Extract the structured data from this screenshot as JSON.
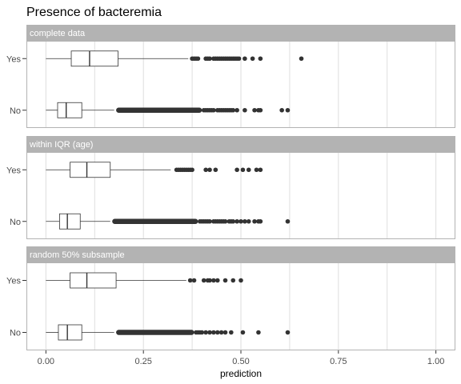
{
  "chart_data": {
    "type": "boxplot",
    "orientation": "horizontal",
    "title": "Presence of bacteremia",
    "xlabel": "prediction",
    "ylabel": "",
    "xlim": [
      -0.05,
      1.05
    ],
    "x_ticks": [
      0.0,
      0.25,
      0.5,
      0.75,
      1.0
    ],
    "x_tick_labels": [
      "0.00",
      "0.25",
      "0.50",
      "0.75",
      "1.00"
    ],
    "categories": [
      "Yes",
      "No"
    ],
    "grid": true,
    "box_color": "#333333",
    "outlier_color": "#333333",
    "strip_color": "#b3b3b3",
    "panel_border_color": "#b3b3b3",
    "grid_color": "#dedede",
    "facets": [
      {
        "label": "complete data",
        "boxes": [
          {
            "category": "Yes",
            "min": 0.0,
            "q1": 0.065,
            "median": 0.112,
            "q3": 0.185,
            "max": 0.365,
            "outliers": [
              0.375,
              0.38,
              0.385,
              0.39,
              0.41,
              0.415,
              0.42,
              0.43,
              0.435,
              0.44,
              0.445,
              0.45,
              0.455,
              0.46,
              0.465,
              0.47,
              0.475,
              0.48,
              0.485,
              0.49,
              0.495,
              0.51,
              0.53,
              0.55,
              0.655
            ]
          },
          {
            "category": "No",
            "min": 0.0,
            "q1": 0.03,
            "median": 0.052,
            "q3": 0.092,
            "max": 0.175,
            "outlier_band": [
              0.18,
              0.4
            ],
            "outliers": [
              0.405,
              0.41,
              0.415,
              0.42,
              0.425,
              0.43,
              0.44,
              0.445,
              0.45,
              0.455,
              0.46,
              0.465,
              0.47,
              0.475,
              0.48,
              0.49,
              0.51,
              0.535,
              0.545,
              0.55,
              0.605,
              0.62
            ]
          }
        ]
      },
      {
        "label": "within IQR (age)",
        "boxes": [
          {
            "category": "Yes",
            "min": 0.0,
            "q1": 0.062,
            "median": 0.105,
            "q3": 0.165,
            "max": 0.32,
            "outliers": [
              0.335,
              0.34,
              0.345,
              0.35,
              0.355,
              0.36,
              0.365,
              0.37,
              0.375,
              0.41,
              0.42,
              0.435,
              0.49,
              0.505,
              0.52,
              0.54,
              0.55
            ]
          },
          {
            "category": "No",
            "min": 0.0,
            "q1": 0.035,
            "median": 0.055,
            "q3": 0.088,
            "max": 0.165,
            "outlier_band": [
              0.17,
              0.39
            ],
            "outliers": [
              0.395,
              0.4,
              0.405,
              0.41,
              0.415,
              0.42,
              0.43,
              0.435,
              0.44,
              0.445,
              0.45,
              0.455,
              0.46,
              0.47,
              0.475,
              0.48,
              0.49,
              0.5,
              0.51,
              0.52,
              0.535,
              0.545,
              0.55,
              0.62
            ]
          }
        ]
      },
      {
        "label": "random 50% subsample",
        "boxes": [
          {
            "category": "Yes",
            "min": 0.0,
            "q1": 0.062,
            "median": 0.105,
            "q3": 0.18,
            "max": 0.36,
            "outliers": [
              0.37,
              0.38,
              0.405,
              0.415,
              0.42,
              0.43,
              0.44,
              0.46,
              0.48,
              0.5
            ]
          },
          {
            "category": "No",
            "min": 0.0,
            "q1": 0.032,
            "median": 0.055,
            "q3": 0.092,
            "max": 0.175,
            "outlier_band": [
              0.18,
              0.38
            ],
            "outliers": [
              0.385,
              0.39,
              0.395,
              0.4,
              0.41,
              0.42,
              0.43,
              0.44,
              0.45,
              0.46,
              0.475,
              0.505,
              0.545,
              0.62
            ]
          }
        ]
      }
    ]
  }
}
